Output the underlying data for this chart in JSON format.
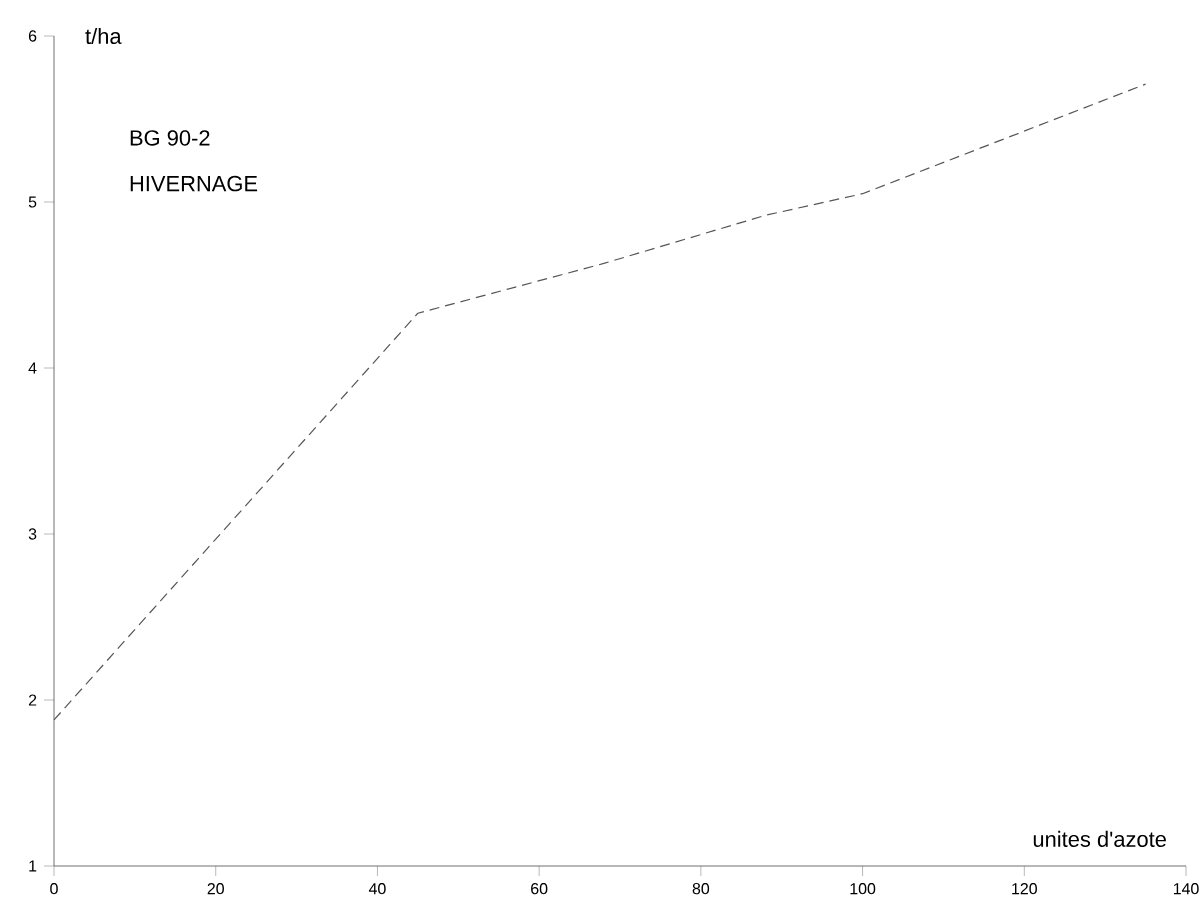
{
  "chart_data": {
    "type": "line",
    "xlabel": "unites d'azote",
    "ylabel": "t/ha",
    "annotations": [
      "BG 90-2",
      "HIVERNAGE"
    ],
    "x": [
      0,
      45,
      68,
      88,
      100,
      135
    ],
    "series": [
      {
        "color": "#555555",
        "values": [
          1.88,
          4.33,
          4.63,
          4.92,
          5.05,
          5.71
        ]
      }
    ],
    "xlim": [
      0,
      140
    ],
    "ylim": [
      1,
      6
    ],
    "xticks": [
      0,
      20,
      40,
      60,
      80,
      100,
      120,
      140
    ],
    "yticks": [
      1,
      2,
      3,
      4,
      5,
      6
    ],
    "grid": false,
    "marker": "none",
    "line_style": "dashed"
  }
}
